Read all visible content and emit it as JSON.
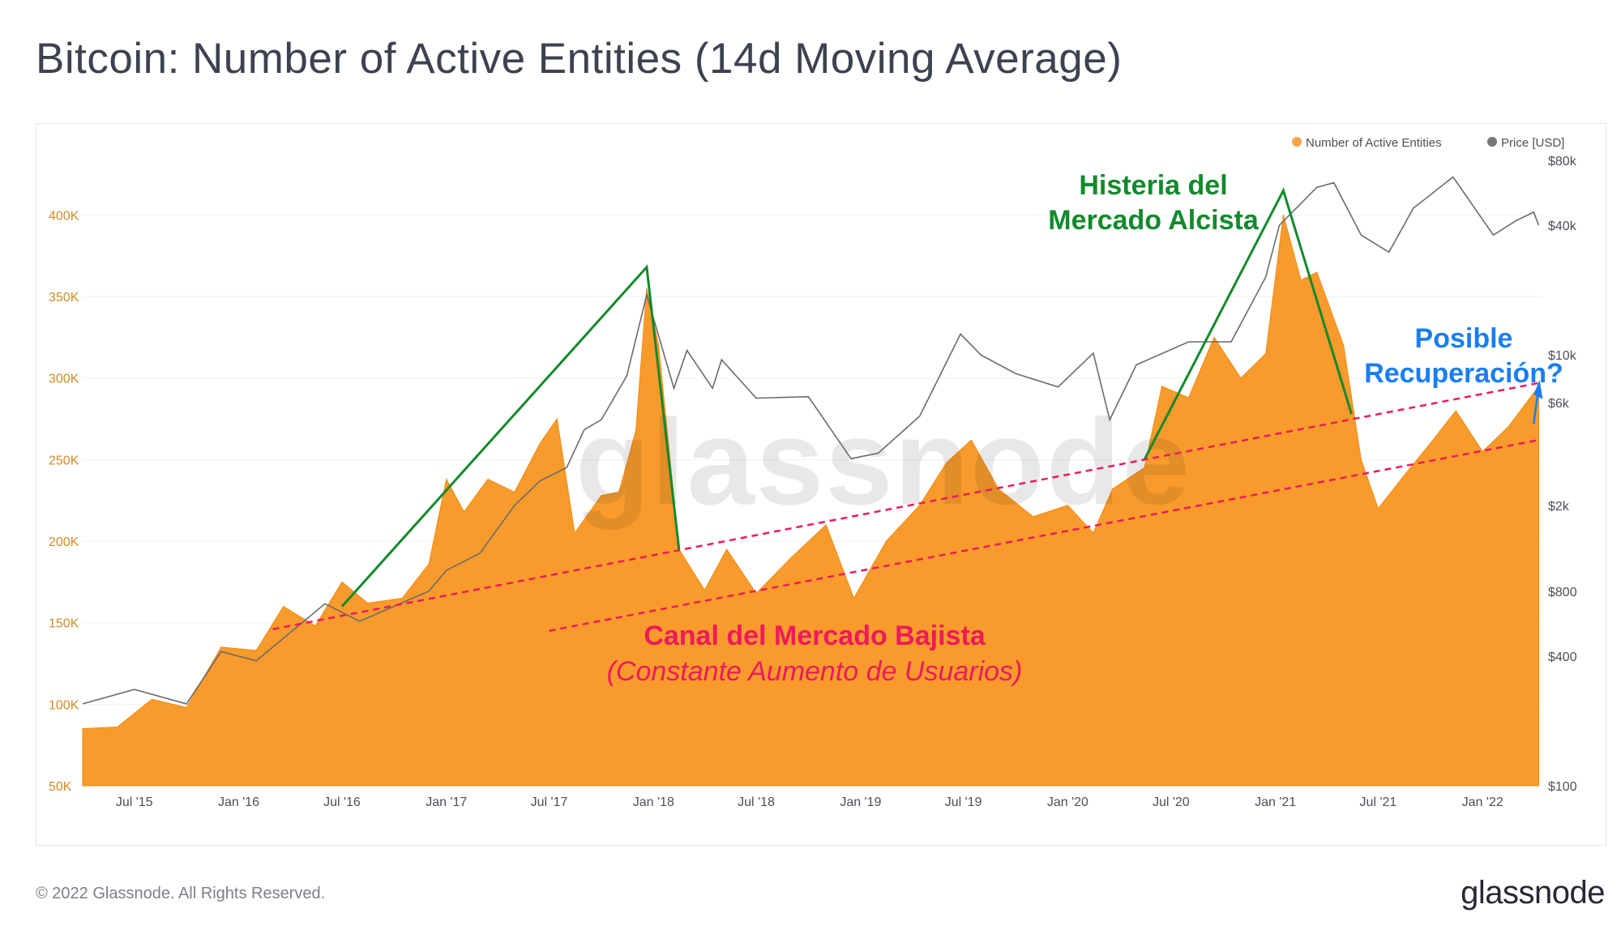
{
  "title": "Bitcoin: Number of Active Entities (14d Moving Average)",
  "footer": "© 2022 Glassnode. All Rights Reserved.",
  "brand": "glassnode",
  "watermark": "glassnode",
  "colors": {
    "entities": "#f7931a",
    "price": "#6b6b6b",
    "green": "#128a2c",
    "red": "#ee1a5c",
    "blue": "#1a7ef0"
  },
  "chart_data": {
    "type": "area",
    "title": "Bitcoin: Number of Active Entities (14d Moving Average)",
    "legend": {
      "placement": "top-right",
      "items": [
        "Number of Active Entities",
        "Price [USD]"
      ]
    },
    "x_ticks": [
      "Jul '15",
      "Jan '16",
      "Jul '16",
      "Jan '17",
      "Jul '17",
      "Jan '18",
      "Jul '18",
      "Jan '19",
      "Jul '19",
      "Jan '20",
      "Jul '20",
      "Jan '21",
      "Jul '21",
      "Jan '22"
    ],
    "y_left": {
      "ticks": [
        "50K",
        "100K",
        "150K",
        "200K",
        "250K",
        "300K",
        "350K",
        "400K"
      ],
      "ylim": [
        50000,
        430000
      ]
    },
    "y_right": {
      "scale": "log",
      "ticks": [
        "$100",
        "$400",
        "$800",
        "$2k",
        "$6k",
        "$10k",
        "$40k",
        "$80k"
      ],
      "ylim": [
        100,
        80000
      ]
    },
    "series": [
      {
        "name": "Number of Active Entities",
        "type": "area",
        "points": [
          [
            "2015-04-01",
            85000
          ],
          [
            "2015-06-01",
            86000
          ],
          [
            "2015-08-01",
            103000
          ],
          [
            "2015-10-01",
            98000
          ],
          [
            "2015-12-01",
            135000
          ],
          [
            "2016-02-01",
            133000
          ],
          [
            "2016-03-20",
            160000
          ],
          [
            "2016-05-15",
            148000
          ],
          [
            "2016-07-01",
            175000
          ],
          [
            "2016-08-15",
            162000
          ],
          [
            "2016-10-15",
            165000
          ],
          [
            "2016-12-01",
            186000
          ],
          [
            "2017-01-01",
            238000
          ],
          [
            "2017-02-01",
            218000
          ],
          [
            "2017-03-15",
            238000
          ],
          [
            "2017-05-01",
            230000
          ],
          [
            "2017-06-15",
            260000
          ],
          [
            "2017-07-15",
            275000
          ],
          [
            "2017-08-15",
            205000
          ],
          [
            "2017-10-01",
            228000
          ],
          [
            "2017-11-01",
            230000
          ],
          [
            "2017-12-01",
            268000
          ],
          [
            "2017-12-20",
            355000
          ],
          [
            "2018-01-10",
            320000
          ],
          [
            "2018-02-15",
            195000
          ],
          [
            "2018-04-01",
            170000
          ],
          [
            "2018-05-10",
            195000
          ],
          [
            "2018-07-01",
            168000
          ],
          [
            "2018-09-01",
            190000
          ],
          [
            "2018-11-01",
            210000
          ],
          [
            "2018-12-20",
            165000
          ],
          [
            "2019-02-15",
            200000
          ],
          [
            "2019-04-15",
            222000
          ],
          [
            "2019-06-01",
            248000
          ],
          [
            "2019-07-15",
            262000
          ],
          [
            "2019-09-01",
            232000
          ],
          [
            "2019-11-01",
            215000
          ],
          [
            "2020-01-01",
            222000
          ],
          [
            "2020-02-15",
            205000
          ],
          [
            "2020-03-20",
            232000
          ],
          [
            "2020-05-15",
            245000
          ],
          [
            "2020-06-15",
            295000
          ],
          [
            "2020-08-01",
            288000
          ],
          [
            "2020-09-15",
            325000
          ],
          [
            "2020-11-01",
            300000
          ],
          [
            "2020-12-15",
            315000
          ],
          [
            "2021-01-15",
            400000
          ],
          [
            "2021-02-15",
            360000
          ],
          [
            "2021-03-15",
            365000
          ],
          [
            "2021-05-01",
            320000
          ],
          [
            "2021-06-01",
            250000
          ],
          [
            "2021-07-01",
            220000
          ],
          [
            "2021-08-15",
            240000
          ],
          [
            "2021-10-01",
            260000
          ],
          [
            "2021-11-15",
            280000
          ],
          [
            "2022-01-01",
            255000
          ],
          [
            "2022-02-15",
            270000
          ],
          [
            "2022-04-10",
            295000
          ]
        ]
      },
      {
        "name": "Price [USD]",
        "type": "line",
        "points": [
          [
            "2015-04-01",
            240
          ],
          [
            "2015-07-01",
            280
          ],
          [
            "2015-10-01",
            240
          ],
          [
            "2015-12-01",
            420
          ],
          [
            "2016-02-01",
            380
          ],
          [
            "2016-06-01",
            700
          ],
          [
            "2016-08-01",
            580
          ],
          [
            "2016-12-01",
            800
          ],
          [
            "2017-01-01",
            1000
          ],
          [
            "2017-03-01",
            1200
          ],
          [
            "2017-05-01",
            2000
          ],
          [
            "2017-06-15",
            2600
          ],
          [
            "2017-08-01",
            3000
          ],
          [
            "2017-09-01",
            4500
          ],
          [
            "2017-10-01",
            5000
          ],
          [
            "2017-11-15",
            8000
          ],
          [
            "2017-12-20",
            19000
          ],
          [
            "2018-02-06",
            7000
          ],
          [
            "2018-03-01",
            10500
          ],
          [
            "2018-04-15",
            7000
          ],
          [
            "2018-05-01",
            9500
          ],
          [
            "2018-07-01",
            6300
          ],
          [
            "2018-10-01",
            6400
          ],
          [
            "2018-12-15",
            3300
          ],
          [
            "2019-02-01",
            3500
          ],
          [
            "2019-04-15",
            5200
          ],
          [
            "2019-06-26",
            12500
          ],
          [
            "2019-08-01",
            10000
          ],
          [
            "2019-10-01",
            8200
          ],
          [
            "2019-12-15",
            7100
          ],
          [
            "2020-02-15",
            10200
          ],
          [
            "2020-03-15",
            5000
          ],
          [
            "2020-05-01",
            9000
          ],
          [
            "2020-08-01",
            11500
          ],
          [
            "2020-10-15",
            11500
          ],
          [
            "2020-12-15",
            23000
          ],
          [
            "2021-01-08",
            40000
          ],
          [
            "2021-03-15",
            60000
          ],
          [
            "2021-04-14",
            63000
          ],
          [
            "2021-06-01",
            36000
          ],
          [
            "2021-07-20",
            30000
          ],
          [
            "2021-09-01",
            48000
          ],
          [
            "2021-11-10",
            67000
          ],
          [
            "2022-01-20",
            36000
          ],
          [
            "2022-03-01",
            42000
          ],
          [
            "2022-04-01",
            46000
          ],
          [
            "2022-04-10",
            40000
          ]
        ]
      }
    ]
  },
  "annotations": {
    "bull_label_line1": "Histeria del",
    "bull_label_line2": "Mercado Alcista",
    "bear_label": "Canal del Mercado Bajista",
    "bear_sublabel": "(Constante Aumento de Usuarios)",
    "recovery_line1": "Posible",
    "recovery_line2": "Recuperación?"
  }
}
